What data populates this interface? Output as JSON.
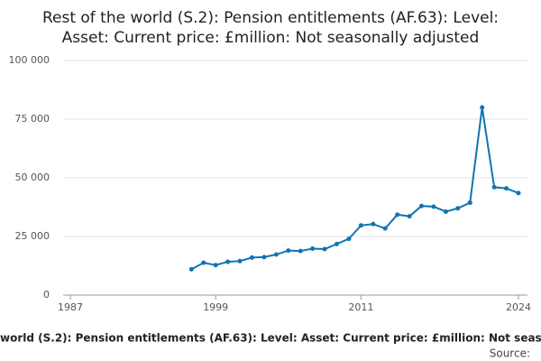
{
  "chart_data": {
    "type": "line",
    "title": [
      "Rest of the world (S.2): Pension entitlements (AF.63): Level:",
      "Asset: Current price: £million: Not seasonally adjusted"
    ],
    "x": [
      1997,
      1998,
      1999,
      2000,
      2001,
      2002,
      2003,
      2004,
      2005,
      2006,
      2007,
      2008,
      2009,
      2010,
      2011,
      2012,
      2013,
      2014,
      2015,
      2016,
      2017,
      2018,
      2019,
      2020,
      2021,
      2022,
      2023,
      2024
    ],
    "values": [
      11000,
      13800,
      12800,
      14200,
      14500,
      16000,
      16200,
      17300,
      19000,
      18800,
      19800,
      19600,
      21800,
      24000,
      29700,
      30300,
      28400,
      34300,
      33600,
      38000,
      37700,
      35600,
      37000,
      39400,
      80000,
      46000,
      45500,
      43500
    ],
    "color": "#0f75b3",
    "xlim": [
      1987,
      2024
    ],
    "xticks": [
      1987,
      1999,
      2011,
      2024
    ],
    "ylim": [
      0,
      100000
    ],
    "yticks": [
      0,
      {
        "value": 25000,
        "label": "25 000"
      },
      {
        "value": 50000,
        "label": "50 000"
      },
      {
        "value": 75000,
        "label": "75 000"
      },
      {
        "value": 100000,
        "label": "100 000"
      }
    ],
    "grid": true,
    "footer": "world (S.2): Pension entitlements (AF.63): Level: Asset: Current price: £million: Not seas",
    "source": "Source:"
  }
}
